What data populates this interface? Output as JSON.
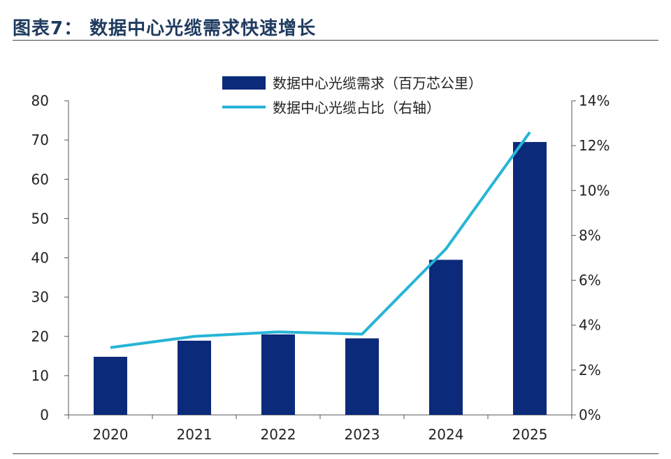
{
  "figure": {
    "title": "图表7：  数据中心光缆需求快速增长"
  },
  "chart_data": {
    "type": "bar",
    "categories": [
      "2020",
      "2021",
      "2022",
      "2023",
      "2024",
      "2025"
    ],
    "series": [
      {
        "name": "数据中心光缆需求（百万芯公里）",
        "type": "bar",
        "axis": "left",
        "color": "#0b2a7a",
        "values": [
          14.8,
          18.9,
          20.5,
          19.5,
          39.5,
          69.5
        ]
      },
      {
        "name": "数据中心光缆占比（右轴）",
        "type": "line",
        "axis": "right",
        "color": "#27b4d6",
        "values": [
          3.0,
          3.5,
          3.7,
          3.6,
          7.4,
          12.6
        ]
      }
    ],
    "y_left": {
      "range": [
        0,
        80
      ],
      "ticks": [
        "0",
        "10",
        "20",
        "30",
        "40",
        "50",
        "60",
        "70",
        "80"
      ]
    },
    "y_right": {
      "range": [
        0,
        14
      ],
      "ticks": [
        "0%",
        "2%",
        "4%",
        "6%",
        "8%",
        "10%",
        "12%",
        "14%"
      ]
    },
    "grid": false,
    "legend": "top-center"
  }
}
